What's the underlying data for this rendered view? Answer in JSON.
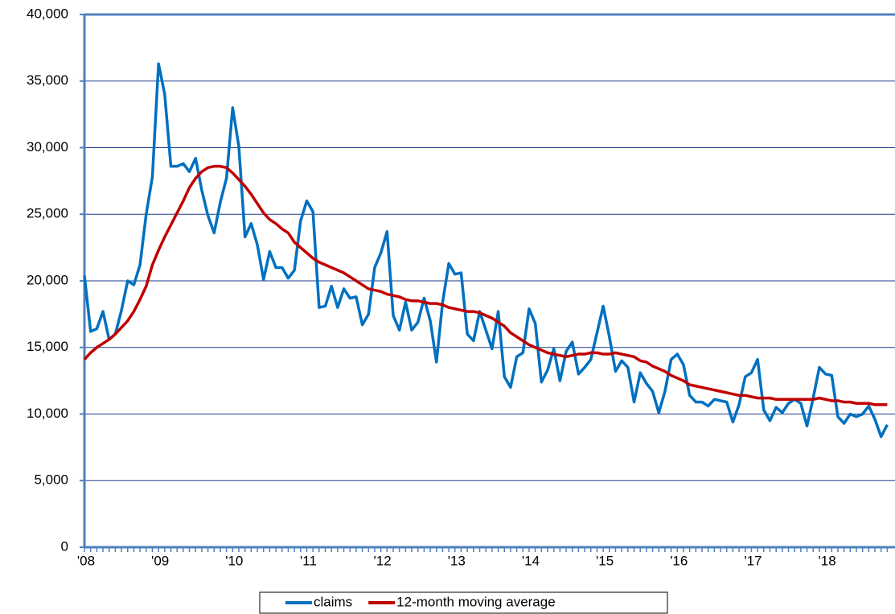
{
  "chart_data": {
    "type": "line",
    "categories": [
      "'08",
      null,
      null,
      null,
      null,
      null,
      null,
      null,
      null,
      null,
      null,
      null,
      "'09",
      null,
      null,
      null,
      null,
      null,
      null,
      null,
      null,
      null,
      null,
      null,
      "'10",
      null,
      null,
      null,
      null,
      null,
      null,
      null,
      null,
      null,
      null,
      null,
      "'11",
      null,
      null,
      null,
      null,
      null,
      null,
      null,
      null,
      null,
      null,
      null,
      "'12",
      null,
      null,
      null,
      null,
      null,
      null,
      null,
      null,
      null,
      null,
      null,
      "'13",
      null,
      null,
      null,
      null,
      null,
      null,
      null,
      null,
      null,
      null,
      null,
      "'14",
      null,
      null,
      null,
      null,
      null,
      null,
      null,
      null,
      null,
      null,
      null,
      "'15",
      null,
      null,
      null,
      null,
      null,
      null,
      null,
      null,
      null,
      null,
      null,
      "'16",
      null,
      null,
      null,
      null,
      null,
      null,
      null,
      null,
      null,
      null,
      null,
      "'17",
      null,
      null,
      null,
      null,
      null,
      null,
      null,
      null,
      null,
      null,
      null,
      "'18",
      null,
      null,
      null,
      null,
      null,
      null,
      null,
      null,
      null,
      null
    ],
    "series": [
      {
        "name": "claims",
        "color": "#0070c0",
        "values": [
          20400,
          16200,
          16400,
          17700,
          15600,
          16000,
          17800,
          20000,
          19700,
          21200,
          25000,
          27800,
          36300,
          34000,
          28600,
          28600,
          28800,
          28200,
          29200,
          26800,
          24900,
          23600,
          25900,
          27700,
          33000,
          30100,
          23300,
          24300,
          22700,
          20100,
          22200,
          21000,
          21000,
          20200,
          20800,
          24500,
          26000,
          25200,
          18000,
          18100,
          19600,
          18000,
          19400,
          18700,
          18800,
          16700,
          17500,
          21000,
          22100,
          23700,
          17400,
          16300,
          18400,
          16300,
          16900,
          18700,
          17000,
          13900,
          18400,
          21300,
          20500,
          20600,
          16000,
          15500,
          17700,
          16300,
          14900,
          17700,
          12800,
          12000,
          14300,
          14600,
          17900,
          16800,
          12400,
          13300,
          14900,
          12500,
          14700,
          15400,
          13000,
          13500,
          14100,
          16100,
          18100,
          15800,
          13200,
          14000,
          13500,
          10900,
          13100,
          12300,
          11700,
          10100,
          11700,
          14100,
          14500,
          13700,
          11400,
          10900,
          10900,
          10600,
          11100,
          11000,
          10900,
          9400,
          10700,
          12800,
          13100,
          14100,
          10300,
          9500,
          10500,
          10100,
          10800,
          11100,
          10800,
          9100,
          11200,
          13500,
          13000,
          12900,
          9800,
          9300,
          10000,
          9800,
          10000,
          10600,
          9600,
          8300,
          9200
        ]
      },
      {
        "name": "12-month moving average",
        "color": "#c00000",
        "values": [
          14100,
          14600,
          15000,
          15300,
          15600,
          16000,
          16500,
          17000,
          17700,
          18600,
          19600,
          21200,
          22300,
          23300,
          24200,
          25100,
          26000,
          27000,
          27700,
          28200,
          28500,
          28600,
          28600,
          28500,
          28100,
          27600,
          27100,
          26500,
          25800,
          25100,
          24600,
          24300,
          23900,
          23600,
          22900,
          22500,
          22100,
          21700,
          21400,
          21200,
          21000,
          20800,
          20600,
          20300,
          20000,
          19700,
          19400,
          19300,
          19200,
          19000,
          18900,
          18800,
          18600,
          18500,
          18500,
          18400,
          18300,
          18300,
          18200,
          18000,
          17900,
          17800,
          17700,
          17700,
          17600,
          17400,
          17200,
          16900,
          16600,
          16100,
          15800,
          15500,
          15200,
          15000,
          14800,
          14600,
          14500,
          14400,
          14300,
          14400,
          14500,
          14500,
          14600,
          14600,
          14500,
          14500,
          14600,
          14500,
          14400,
          14300,
          14000,
          13900,
          13600,
          13400,
          13200,
          12900,
          12700,
          12500,
          12200,
          12100,
          12000,
          11900,
          11800,
          11700,
          11600,
          11500,
          11400,
          11400,
          11300,
          11200,
          11200,
          11200,
          11100,
          11100,
          11100,
          11100,
          11100,
          11100,
          11100,
          11200,
          11100,
          11000,
          11000,
          10900,
          10900,
          10800,
          10800,
          10800,
          10700,
          10700,
          10700
        ]
      }
    ],
    "ylim": [
      0,
      40000
    ],
    "yticks": [
      0,
      {
        "value": 5000,
        "label": "5,000"
      },
      {
        "value": 10000,
        "label": "10,000"
      },
      {
        "value": 15000,
        "label": "15,000"
      },
      {
        "value": 20000,
        "label": "20,000"
      },
      {
        "value": 25000,
        "label": "25,000"
      },
      {
        "value": 30000,
        "label": "30,000"
      },
      {
        "value": 35000,
        "label": "35,000"
      },
      {
        "value": 40000,
        "label": "40,000"
      }
    ],
    "grid": true,
    "legend": "bottom"
  }
}
